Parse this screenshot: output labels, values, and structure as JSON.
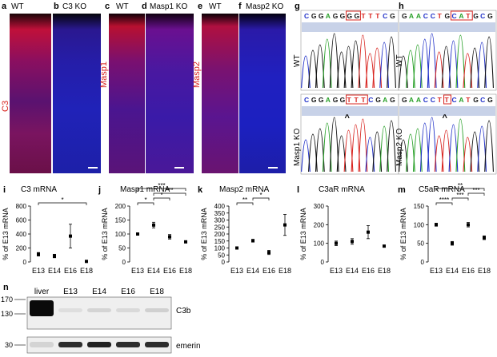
{
  "panels": {
    "a": {
      "letter": "a",
      "header": "WT"
    },
    "b": {
      "letter": "b",
      "header": "C3 KO"
    },
    "c": {
      "letter": "c",
      "header": "WT"
    },
    "d": {
      "letter": "d",
      "header": "Masp1 KO"
    },
    "e": {
      "letter": "e",
      "header": "WT"
    },
    "f": {
      "letter": "f",
      "header": "Masp2 KO"
    },
    "g": {
      "letter": "g",
      "wt_label": "WT",
      "ko_label": "Masp1 KO",
      "wt_seq": "CGGAGGGGTTTCG",
      "ko_seq": "CGGAGGTTTCGAG"
    },
    "h": {
      "letter": "h",
      "wt_label": "WT",
      "ko_label": "Masp2 KO",
      "wt_seq": "GAACCTGCATGCG",
      "ko_seq": "GAACCTTCATGCG"
    },
    "i": {
      "letter": "i"
    },
    "j": {
      "letter": "j"
    },
    "k": {
      "letter": "k"
    },
    "l": {
      "letter": "l"
    },
    "m": {
      "letter": "m"
    },
    "n": {
      "letter": "n"
    }
  },
  "side_labels": {
    "a_b": "C3",
    "c_d": "Masp1",
    "e_f": "Masp2"
  },
  "chart_data": [
    {
      "id": "i",
      "type": "scatter",
      "title": "C3 mRNA",
      "ylabel": "% of E13 mRNA",
      "categories": [
        "E13",
        "E14",
        "E16",
        "E18"
      ],
      "values": [
        110,
        85,
        370,
        8
      ],
      "errors": [
        25,
        25,
        170,
        10
      ],
      "ylim": [
        0,
        800
      ],
      "yticks": [
        0,
        200,
        400,
        600,
        800
      ],
      "sig": [
        {
          "from": 0,
          "to": 3,
          "text": "*"
        }
      ]
    },
    {
      "id": "j",
      "type": "scatter",
      "title": "Masp1 mRNA",
      "ylabel": "% of E13 mRNA",
      "categories": [
        "E13",
        "E14",
        "E16",
        "E18"
      ],
      "values": [
        100,
        132,
        90,
        72
      ],
      "errors": [
        2,
        10,
        8,
        4
      ],
      "ylim": [
        0,
        200
      ],
      "yticks": [
        0,
        50,
        100,
        150,
        200
      ],
      "sig": [
        {
          "from": 0,
          "to": 1,
          "text": "*"
        },
        {
          "from": 1,
          "to": 2,
          "text": "*"
        },
        {
          "from": 1,
          "to": 3,
          "text": "***"
        },
        {
          "from": 0,
          "to": 3,
          "text": "***"
        }
      ]
    },
    {
      "id": "k",
      "type": "scatter",
      "title": "Masp2 mRNA",
      "ylabel": "% of E13 mRNA",
      "categories": [
        "E13",
        "E14",
        "E16",
        "E18"
      ],
      "values": [
        100,
        152,
        68,
        265
      ],
      "errors": [
        3,
        10,
        15,
        75
      ],
      "ylim": [
        0,
        400
      ],
      "yticks": [
        0,
        50,
        100,
        150,
        200,
        250,
        300,
        350,
        400
      ],
      "sig": [
        {
          "from": 0,
          "to": 1,
          "text": "**"
        },
        {
          "from": 1,
          "to": 2,
          "text": "*"
        }
      ]
    },
    {
      "id": "l",
      "type": "scatter",
      "title": "C3aR mRNA",
      "ylabel": "% of E13 mRNA",
      "categories": [
        "E13",
        "E14",
        "E16",
        "E18"
      ],
      "values": [
        100,
        110,
        160,
        85
      ],
      "errors": [
        12,
        15,
        35,
        5
      ],
      "ylim": [
        0,
        300
      ],
      "yticks": [
        0,
        100,
        200,
        300
      ],
      "sig": []
    },
    {
      "id": "m",
      "type": "scatter",
      "title": "C5aR mRNA",
      "ylabel": "% of E13 mRNA",
      "categories": [
        "E13",
        "E14",
        "E16",
        "E18"
      ],
      "values": [
        100,
        50,
        100,
        65
      ],
      "errors": [
        4,
        5,
        6,
        5
      ],
      "ylim": [
        0,
        150
      ],
      "yticks": [
        0,
        50,
        100,
        150
      ],
      "sig": [
        {
          "from": 0,
          "to": 1,
          "text": "****"
        },
        {
          "from": 1,
          "to": 2,
          "text": "***"
        },
        {
          "from": 2,
          "to": 3,
          "text": "***"
        },
        {
          "from": 0,
          "to": 3,
          "text": "**"
        }
      ]
    }
  ],
  "blot": {
    "lanes": [
      "liver",
      "E13",
      "E14",
      "E16",
      "E18"
    ],
    "top_label": "C3b",
    "bottom_label": "emerin",
    "mw_top": [
      "170",
      "130"
    ],
    "mw_bottom": [
      "30"
    ],
    "c3b_intensity": [
      1.0,
      0.08,
      0.12,
      0.1,
      0.14
    ],
    "emerin_intensity": [
      0.12,
      0.85,
      0.9,
      0.85,
      0.85
    ]
  },
  "colors": {
    "red": "#d8241f",
    "blue": "#2030c8",
    "green": "#28a028",
    "black": "#111111"
  }
}
